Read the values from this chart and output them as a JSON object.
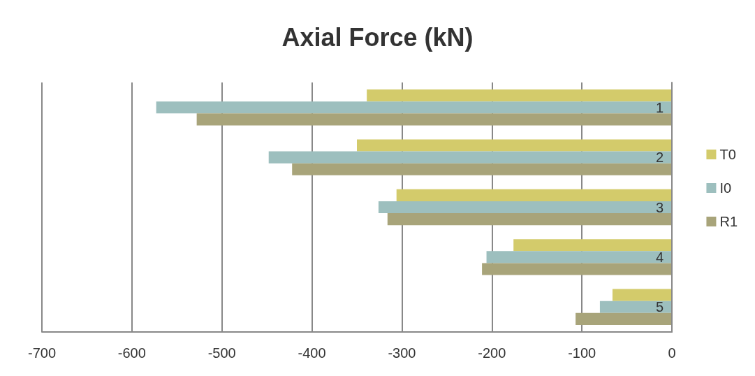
{
  "chart_data": {
    "type": "bar",
    "orientation": "horizontal",
    "title": "Axial Force (kN)",
    "categories": [
      "1",
      "2",
      "3",
      "4",
      "5"
    ],
    "series": [
      {
        "name": "T0",
        "color": "#d3cb6b",
        "values": [
          -339,
          -350,
          -306,
          -176,
          -66
        ]
      },
      {
        "name": "I0",
        "color": "#9dbfbe",
        "values": [
          -573,
          -448,
          -326,
          -206,
          -80
        ]
      },
      {
        "name": "R1",
        "color": "#a8a47a",
        "values": [
          -528,
          -422,
          -316,
          -211,
          -107
        ]
      }
    ],
    "xlim": [
      -700,
      0
    ],
    "xticks": [
      -700,
      -600,
      -500,
      -400,
      -300,
      -200,
      -100,
      0
    ],
    "grid": "x",
    "legend": "right"
  }
}
